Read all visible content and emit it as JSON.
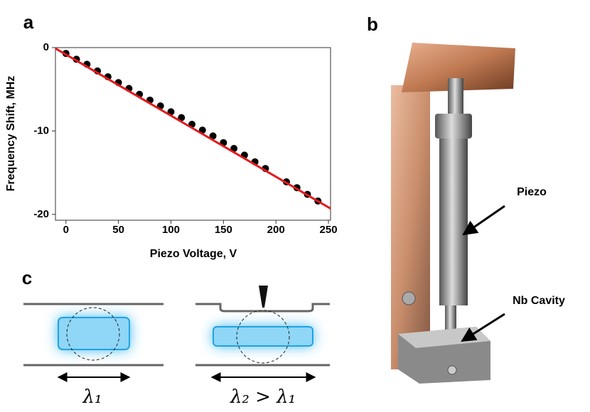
{
  "panel_labels": [
    "a",
    "b",
    "c"
  ],
  "chart_data": {
    "type": "scatter",
    "xlabel": "Piezo Voltage, V",
    "ylabel": "Frequency Shift, MHz",
    "xlim": [
      -10,
      252
    ],
    "ylim": [
      -20.7,
      0
    ],
    "xticks": [
      0,
      50,
      100,
      150,
      200,
      250
    ],
    "yticks": [
      0,
      -10,
      -20
    ],
    "series": [
      {
        "color": "#000000",
        "x": [
          0,
          10,
          20,
          30,
          40,
          50,
          60,
          70,
          80,
          90,
          100,
          110,
          120,
          130,
          140,
          150,
          160,
          170,
          180,
          190,
          210,
          220,
          230,
          240
        ],
        "values": [
          -0.7,
          -1.4,
          -2.0,
          -2.8,
          -3.5,
          -4.2,
          -4.9,
          -5.6,
          -6.3,
          -7.0,
          -7.7,
          -8.4,
          -9.2,
          -9.9,
          -10.6,
          -11.4,
          -12.1,
          -12.9,
          -13.7,
          -14.5,
          -16.1,
          -16.8,
          -17.6,
          -18.4
        ]
      },
      {
        "color": "#e41a1c",
        "line": true,
        "x": [
          -10,
          252
        ],
        "values": [
          -0.1,
          -19.3
        ]
      }
    ]
  },
  "photo_labels": [
    "Piezo",
    "Nb Cavity"
  ],
  "diagram_labels": [
    "λ₁",
    "λ₂ > λ₁"
  ]
}
